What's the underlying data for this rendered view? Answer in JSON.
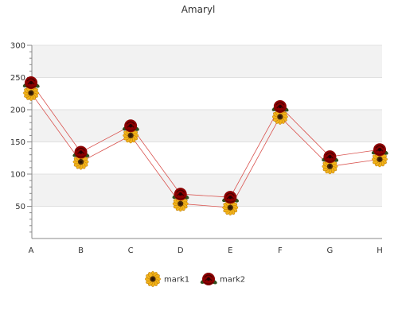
{
  "chart_data": {
    "type": "line",
    "title": "Amaryl",
    "xlabel": "",
    "ylabel": "",
    "categories": [
      "A",
      "B",
      "C",
      "D",
      "E",
      "F",
      "G",
      "H"
    ],
    "ylim": [
      0,
      300
    ],
    "yticks": [
      50,
      100,
      150,
      200,
      250,
      300
    ],
    "grid": true,
    "legend_position": "bottom",
    "series": [
      {
        "name": "mark1",
        "values": [
          226,
          119,
          160,
          54,
          48,
          189,
          112,
          123
        ],
        "color": "#e8a020",
        "marker": "sunflower-icon"
      },
      {
        "name": "mark2",
        "values": [
          242,
          134,
          175,
          69,
          64,
          205,
          127,
          138
        ],
        "color": "#8b0000",
        "marker": "rose-icon"
      }
    ],
    "line_color": "#d9534f"
  }
}
